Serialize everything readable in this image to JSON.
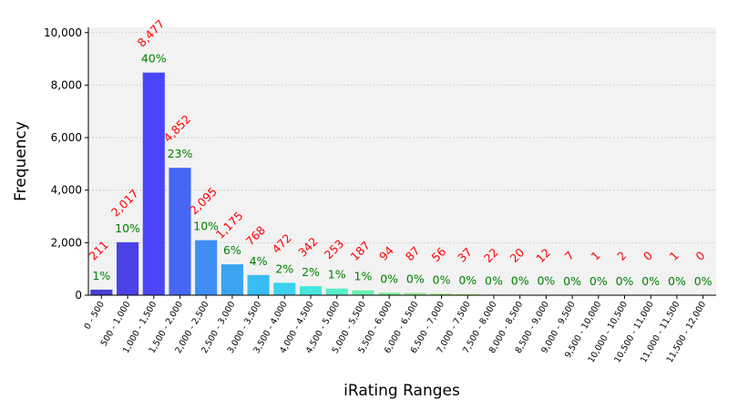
{
  "chart_data": {
    "type": "bar",
    "title": "",
    "xlabel": "iRating Ranges",
    "ylabel": "Frequency",
    "ylim": [
      0,
      10200
    ],
    "yticks": [
      0,
      2000,
      4000,
      6000,
      8000,
      10000
    ],
    "ytick_labels": [
      "0",
      "2,000",
      "4,000",
      "6,000",
      "8,000",
      "10,000"
    ],
    "grid": true,
    "categories": [
      "0 - 500",
      "500 - 1,000",
      "1,000 - 1,500",
      "1,500 - 2,000",
      "2,000 - 2,500",
      "2,500 - 3,000",
      "3,000 - 3,500",
      "3,500 - 4,000",
      "4,000 - 4,500",
      "4,500 - 5,000",
      "5,000 - 5,500",
      "5,500 - 6,000",
      "6,000 - 6,500",
      "6,500 - 7,000",
      "7,000 - 7,500",
      "7,500 - 8,000",
      "8,000 - 8,500",
      "8,500 - 9,000",
      "9,000 - 9,500",
      "9,500 - 10,000",
      "10,000 - 10,500",
      "10,500 - 11,000",
      "11,000 - 11,500",
      "11,500 - 12,000"
    ],
    "values": [
      211,
      2017,
      8477,
      4852,
      2095,
      1175,
      768,
      472,
      342,
      253,
      187,
      94,
      87,
      56,
      37,
      22,
      20,
      12,
      7,
      1,
      2,
      0,
      1,
      0
    ],
    "count_labels": [
      "211",
      "2,017",
      "8,477",
      "4,852",
      "2,095",
      "1,175",
      "768",
      "472",
      "342",
      "253",
      "187",
      "94",
      "87",
      "56",
      "37",
      "22",
      "20",
      "12",
      "7",
      "1",
      "2",
      "0",
      "1",
      "0"
    ],
    "percent_labels": [
      "1%",
      "10%",
      "40%",
      "23%",
      "10%",
      "6%",
      "4%",
      "2%",
      "2%",
      "1%",
      "1%",
      "0%",
      "0%",
      "0%",
      "0%",
      "0%",
      "0%",
      "0%",
      "0%",
      "0%",
      "0%",
      "0%",
      "0%",
      "0%"
    ],
    "bar_colors": [
      "#4b3fd1",
      "#4a41e6",
      "#4a45f8",
      "#4766f4",
      "#3f8ef4",
      "#3aa3f2",
      "#38bcf4",
      "#3bd1f0",
      "#46e6df",
      "#56eec9",
      "#68f0b0",
      "#7cf09c",
      "#8ef08c",
      "#a0ee7a",
      "#b2ea6a",
      "#c4e65c",
      "#d2de50",
      "#ded446",
      "#e6c63e",
      "#ecb436",
      "#efa22e",
      "#f08e28",
      "#ef7822",
      "#ec621e"
    ],
    "background_color": "#f2f2f2",
    "count_label_color": "#ff0000",
    "percent_label_color": "#008000"
  }
}
